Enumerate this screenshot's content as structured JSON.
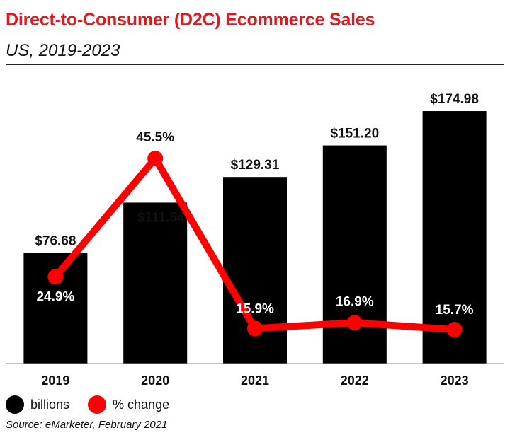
{
  "header": {
    "title": "Direct-to-Consumer (D2C) Ecommerce Sales",
    "subtitle": "US, 2019-2023"
  },
  "legend": {
    "items": [
      {
        "label": "billions",
        "color": "#000000"
      },
      {
        "label": "% change",
        "color": "#ff0000"
      }
    ]
  },
  "footer": {
    "source": "Source: eMarketer, February 2021"
  },
  "chart_data": {
    "type": "bar",
    "title": "Direct-to-Consumer (D2C) Ecommerce Sales",
    "subtitle": "US, 2019-2023",
    "categories": [
      "2019",
      "2020",
      "2021",
      "2022",
      "2023"
    ],
    "series": [
      {
        "name": "billions",
        "type": "bar",
        "color": "#000000",
        "values": [
          76.68,
          111.54,
          129.31,
          151.2,
          174.98
        ],
        "labels": [
          "$76.68",
          "$111.54",
          "$129.31",
          "$151.20",
          "$174.98"
        ]
      },
      {
        "name": "% change",
        "type": "line",
        "color": "#ff0000",
        "values": [
          24.9,
          45.5,
          15.9,
          16.9,
          15.7
        ],
        "labels": [
          "24.9%",
          "45.5%",
          "15.9%",
          "16.9%",
          "15.7%"
        ]
      }
    ],
    "bar_ylim": [
      0,
      175
    ],
    "line_ylim": [
      0,
      45.5
    ],
    "grid": false,
    "legend_position": "bottom-left"
  }
}
